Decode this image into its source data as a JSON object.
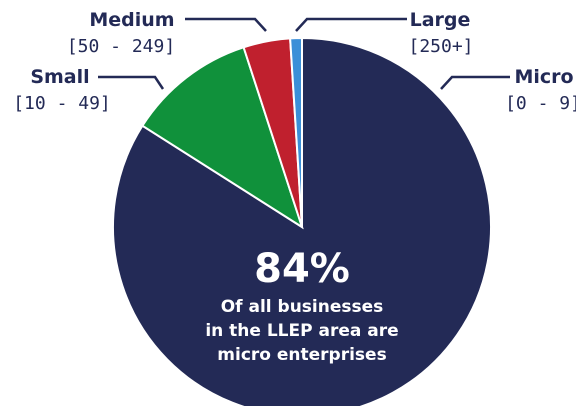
{
  "chart_data": {
    "type": "pie",
    "series": [
      {
        "slices": [
          {
            "name": "Micro",
            "range": "[0 - 9]",
            "value": 84,
            "color": "#232a56"
          },
          {
            "name": "Small",
            "range": "[10 - 49]",
            "value": 11,
            "color": "#10913b"
          },
          {
            "name": "Medium",
            "range": "[50 - 249]",
            "value": 4,
            "color": "#c0202e"
          },
          {
            "name": "Large",
            "range": "[250+]",
            "value": 1,
            "color": "#3b8fd8"
          }
        ]
      }
    ],
    "headline": "84%",
    "caption": [
      "Of all businesses",
      "in the LLEP area are",
      "micro enterprises"
    ]
  }
}
